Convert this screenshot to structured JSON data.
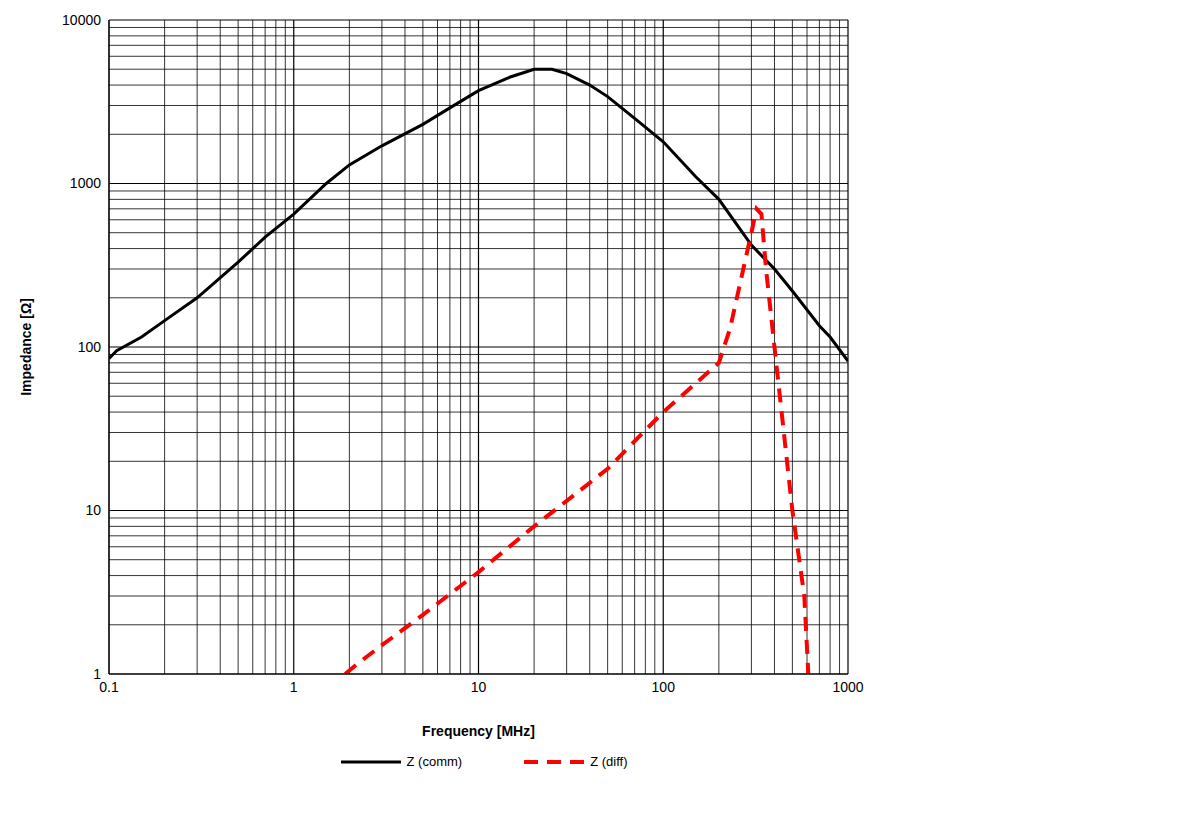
{
  "chart_data": {
    "type": "line",
    "log": true,
    "grid": true,
    "legend": "bottom",
    "x_label": "Frequency [MHz]",
    "y_label": "Impedance [Ω]",
    "xlim": [
      0.1,
      1000
    ],
    "ylim": [
      1,
      10000
    ],
    "xticks": [
      0.1,
      1,
      10,
      100,
      1000
    ],
    "yticks": [
      1,
      10,
      100,
      1000,
      10000
    ],
    "series": [
      {
        "name": "Z (comm)",
        "color": "#000000",
        "line_style": "solid",
        "x": [
          0.1,
          0.11,
          0.15,
          0.2,
          0.3,
          0.5,
          0.7,
          1,
          1.5,
          2,
          3,
          5,
          7,
          10,
          15,
          20,
          25,
          30,
          40,
          50,
          70,
          100,
          150,
          200,
          300,
          400,
          500,
          700,
          800,
          1000
        ],
        "values": [
          85,
          95,
          115,
          145,
          200,
          330,
          470,
          650,
          1000,
          1300,
          1700,
          2300,
          2900,
          3700,
          4500,
          5000,
          5000,
          4700,
          4000,
          3400,
          2500,
          1800,
          1100,
          800,
          420,
          300,
          220,
          135,
          115,
          82
        ]
      },
      {
        "name": "Z (diff)",
        "color": "#ff0000",
        "line_style": "dashed",
        "x": [
          1.9,
          2.2,
          3,
          5,
          10,
          20,
          50,
          100,
          200,
          230,
          300,
          320,
          340,
          360,
          400,
          500,
          580,
          610
        ],
        "values": [
          1,
          1.15,
          1.5,
          2.3,
          4.2,
          8,
          18,
          40,
          80,
          130,
          500,
          700,
          650,
          300,
          100,
          10,
          3,
          1
        ]
      }
    ]
  }
}
